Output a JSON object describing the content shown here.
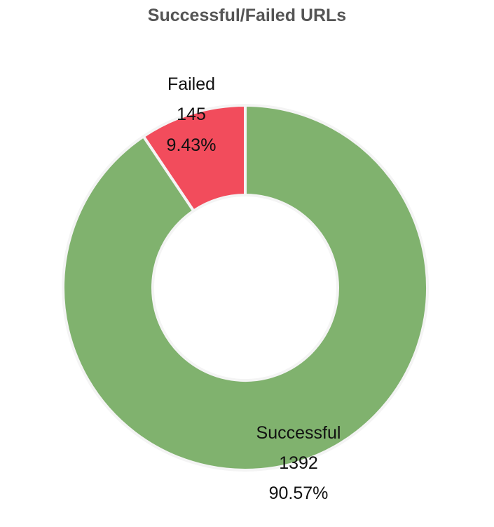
{
  "chart_data": {
    "type": "pie",
    "title": "Successful/Failed URLs",
    "donut": true,
    "slices": [
      {
        "label": "Failed",
        "value": 145,
        "percent": "9.43%",
        "color": "#f24c5c"
      },
      {
        "label": "Successful",
        "value": 1392,
        "percent": "90.57%",
        "color": "#80b26e"
      }
    ]
  }
}
